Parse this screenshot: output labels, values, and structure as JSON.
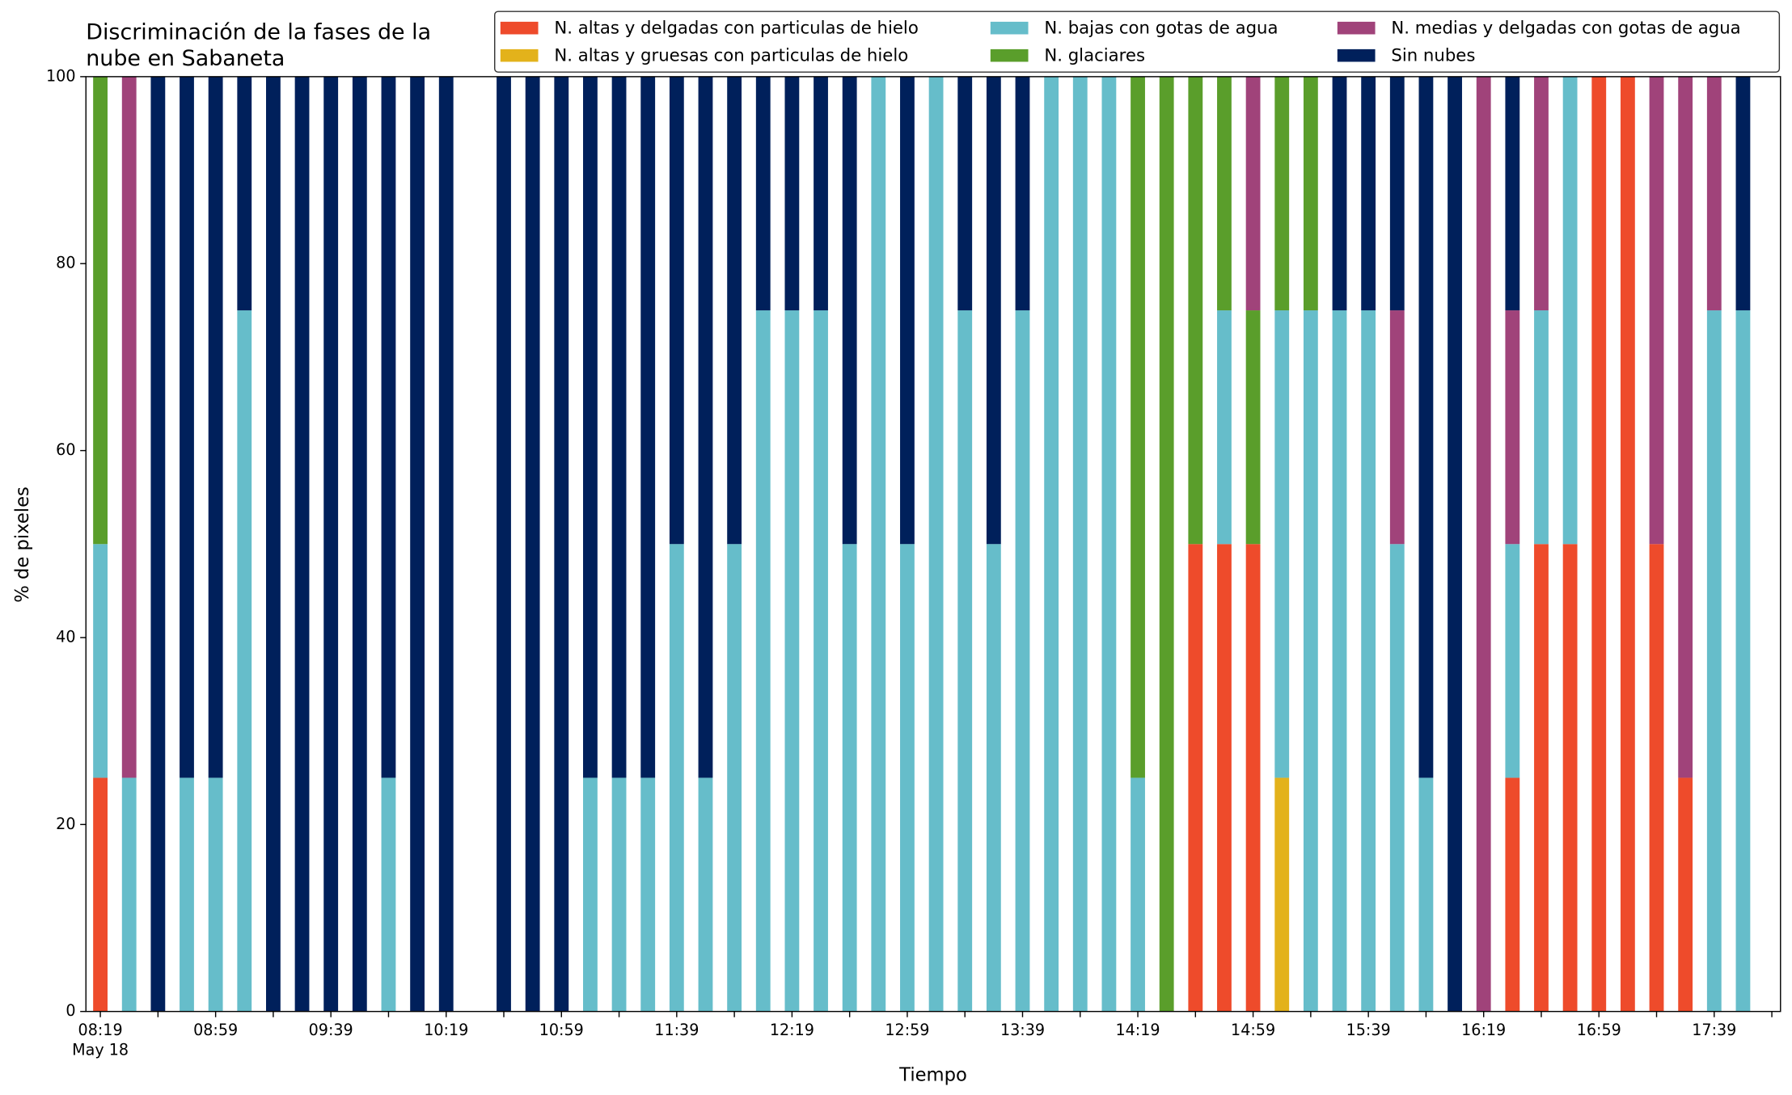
{
  "chart_data": {
    "type": "bar",
    "stacked": true,
    "title": [
      "Discriminación de la fases de la",
      "nube en Sabaneta"
    ],
    "xlabel": "Tiempo",
    "ylabel": "% de pixeles",
    "x": [
      "08:19",
      "08:29",
      "08:39",
      "08:49",
      "08:59",
      "09:09",
      "09:19",
      "09:29",
      "09:39",
      "09:49",
      "09:59",
      "10:09",
      "10:19",
      "10:39",
      "10:49",
      "10:59",
      "11:09",
      "11:19",
      "11:29",
      "11:39",
      "11:49",
      "11:59",
      "12:09",
      "12:19",
      "12:29",
      "12:39",
      "12:49",
      "12:59",
      "13:09",
      "13:19",
      "13:29",
      "13:39",
      "13:49",
      "13:59",
      "14:09",
      "14:19",
      "14:29",
      "14:39",
      "14:49",
      "14:59",
      "15:09",
      "15:19",
      "15:29",
      "15:39",
      "15:49",
      "15:59",
      "16:09",
      "16:19",
      "16:29",
      "16:39",
      "16:49",
      "16:59",
      "17:09",
      "17:19",
      "17:29",
      "17:39",
      "17:49"
    ],
    "xdate": "May 18",
    "xlim": [
      "08:14",
      "18:02"
    ],
    "xticks": [
      "08:19",
      "08:59",
      "09:39",
      "10:19",
      "10:59",
      "11:39",
      "12:19",
      "12:59",
      "13:39",
      "14:19",
      "14:59",
      "15:39",
      "16:19",
      "16:59",
      "17:39"
    ],
    "xminorticks": [
      "08:39",
      "09:19",
      "09:59",
      "10:39",
      "11:19",
      "11:59",
      "12:39",
      "13:19",
      "13:59",
      "14:39",
      "15:19",
      "15:59",
      "16:39",
      "17:19",
      "17:59"
    ],
    "ylim": [
      0,
      100
    ],
    "yticks": [
      0,
      20,
      40,
      60,
      80,
      100
    ],
    "legend": "upper right",
    "series": [
      {
        "name": "N. altas y delgadas con particulas de hielo",
        "color": "#ee4b2b",
        "values": [
          25,
          0,
          0,
          0,
          0,
          0,
          0,
          0,
          0,
          0,
          0,
          0,
          0,
          0,
          0,
          0,
          0,
          0,
          0,
          0,
          0,
          0,
          0,
          0,
          0,
          0,
          0,
          0,
          0,
          0,
          0,
          0,
          0,
          0,
          0,
          0,
          0,
          50,
          50,
          50,
          0,
          0,
          0,
          0,
          0,
          0,
          0,
          0,
          25,
          50,
          50,
          100,
          100,
          50,
          25,
          0,
          0
        ]
      },
      {
        "name": "N. altas y gruesas con particulas de hielo",
        "color": "#e3b21b",
        "values": [
          0,
          0,
          0,
          0,
          0,
          0,
          0,
          0,
          0,
          0,
          0,
          0,
          0,
          0,
          0,
          0,
          0,
          0,
          0,
          0,
          0,
          0,
          0,
          0,
          0,
          0,
          0,
          0,
          0,
          0,
          0,
          0,
          0,
          0,
          0,
          0,
          0,
          0,
          0,
          0,
          25,
          0,
          0,
          0,
          0,
          0,
          0,
          0,
          0,
          0,
          0,
          0,
          0,
          0,
          0,
          0,
          0
        ]
      },
      {
        "name": "N. bajas con gotas de agua",
        "color": "#66bdca",
        "values": [
          25,
          25,
          0,
          25,
          25,
          75,
          0,
          0,
          0,
          0,
          25,
          0,
          0,
          0,
          0,
          0,
          25,
          25,
          25,
          50,
          25,
          50,
          75,
          75,
          75,
          50,
          100,
          50,
          100,
          75,
          50,
          75,
          100,
          100,
          100,
          25,
          0,
          0,
          25,
          0,
          50,
          75,
          75,
          75,
          50,
          25,
          0,
          0,
          25,
          25,
          50,
          0,
          0,
          0,
          0,
          75,
          75
        ]
      },
      {
        "name": "N. glaciares",
        "color": "#5a9e2b",
        "values": [
          50,
          0,
          0,
          0,
          0,
          0,
          0,
          0,
          0,
          0,
          0,
          0,
          0,
          0,
          0,
          0,
          0,
          0,
          0,
          0,
          0,
          0,
          0,
          0,
          0,
          0,
          0,
          0,
          0,
          0,
          0,
          0,
          0,
          0,
          0,
          75,
          100,
          50,
          25,
          25,
          25,
          25,
          0,
          0,
          0,
          0,
          0,
          0,
          0,
          0,
          0,
          0,
          0,
          0,
          0,
          0,
          0
        ]
      },
      {
        "name": "N. medias y delgadas con gotas de agua",
        "color": "#a0437a",
        "values": [
          0,
          75,
          0,
          0,
          0,
          0,
          0,
          0,
          0,
          0,
          0,
          0,
          0,
          0,
          0,
          0,
          0,
          0,
          0,
          0,
          0,
          0,
          0,
          0,
          0,
          0,
          0,
          0,
          0,
          0,
          0,
          0,
          0,
          0,
          0,
          0,
          0,
          0,
          0,
          25,
          0,
          0,
          0,
          0,
          25,
          0,
          0,
          100,
          25,
          25,
          0,
          0,
          0,
          50,
          75,
          25,
          0
        ]
      },
      {
        "name": "Sin nubes",
        "color": "#00205b",
        "values": [
          0,
          0,
          100,
          75,
          75,
          25,
          100,
          100,
          100,
          100,
          75,
          100,
          100,
          100,
          100,
          100,
          75,
          75,
          75,
          50,
          75,
          50,
          25,
          25,
          25,
          50,
          0,
          50,
          0,
          25,
          50,
          25,
          0,
          0,
          0,
          0,
          0,
          0,
          0,
          0,
          0,
          0,
          25,
          25,
          25,
          75,
          100,
          0,
          25,
          0,
          0,
          0,
          0,
          0,
          0,
          0,
          25
        ]
      }
    ]
  }
}
